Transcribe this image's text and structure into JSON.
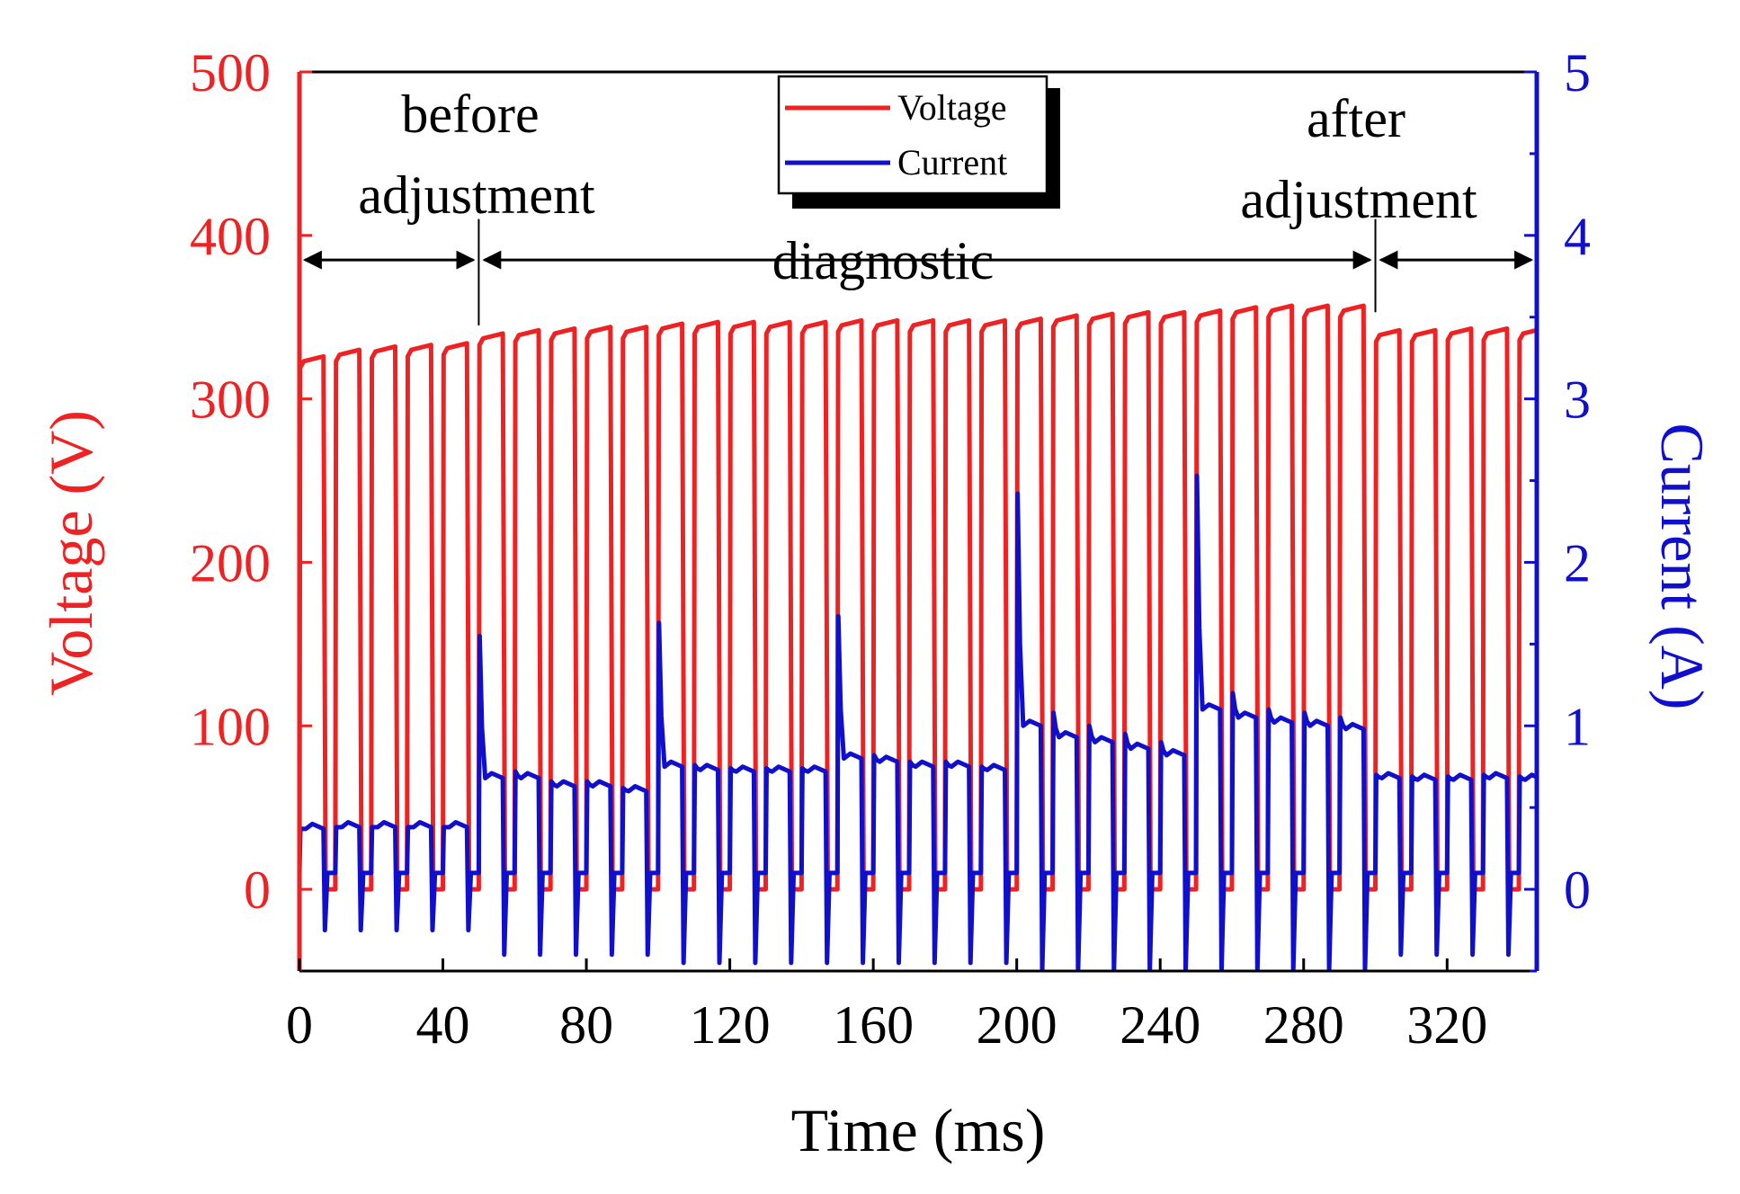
{
  "chart_data": {
    "type": "line",
    "title": "",
    "xlabel": "Time (ms)",
    "ylabel_left": "Voltage (V)",
    "ylabel_right": "Current (A)",
    "xlim": [
      0,
      345
    ],
    "ylim_left": [
      -50,
      500
    ],
    "ylim_right": [
      -0.5,
      5
    ],
    "x_ticks": [
      "0",
      "40",
      "80",
      "120",
      "160",
      "200",
      "240",
      "280",
      "320"
    ],
    "x_tick_values": [
      0,
      40,
      80,
      120,
      160,
      200,
      240,
      280,
      320
    ],
    "y_left_ticks": [
      "0",
      "100",
      "200",
      "300",
      "400",
      "500"
    ],
    "y_left_tick_values": [
      0,
      100,
      200,
      300,
      400,
      500
    ],
    "y_right_ticks": [
      "0",
      "1",
      "2",
      "3",
      "4",
      "5"
    ],
    "y_right_tick_values": [
      0,
      1,
      2,
      3,
      4,
      5
    ],
    "grid": false,
    "legend": {
      "position": "top-center",
      "entries": [
        {
          "name": "Voltage",
          "color": "#ee2222"
        },
        {
          "name": "Current",
          "color": "#1010cc"
        }
      ]
    },
    "pulse_period_ms": 10,
    "pulse_on_ms": 7,
    "series": [
      {
        "name": "Voltage",
        "axis": "left",
        "unit": "V",
        "color": "#ee2222",
        "pulse_start_ms": [
          0,
          10,
          20,
          30,
          40,
          50,
          60,
          70,
          80,
          90,
          100,
          110,
          120,
          130,
          140,
          150,
          160,
          170,
          180,
          190,
          200,
          210,
          220,
          230,
          240,
          250,
          260,
          270,
          280,
          290,
          300,
          310,
          320,
          330,
          340
        ],
        "pulse_plateau": [
          326,
          330,
          332,
          333,
          334,
          340,
          342,
          343,
          344,
          344,
          346,
          347,
          347,
          347,
          347,
          348,
          348,
          348,
          348,
          348,
          349,
          351,
          352,
          353,
          353,
          354,
          356,
          357,
          357,
          357,
          342,
          342,
          343,
          343,
          343
        ],
        "off_level": 0
      },
      {
        "name": "Current",
        "axis": "right",
        "unit": "A",
        "color": "#1010cc",
        "pulse_start_ms": [
          0,
          10,
          20,
          30,
          40,
          50,
          60,
          70,
          80,
          90,
          100,
          110,
          120,
          130,
          140,
          150,
          160,
          170,
          180,
          190,
          200,
          210,
          220,
          230,
          240,
          250,
          260,
          270,
          280,
          290,
          300,
          310,
          320,
          330,
          340
        ],
        "pulse_plateau": [
          0.37,
          0.38,
          0.38,
          0.38,
          0.38,
          0.68,
          0.68,
          0.63,
          0.63,
          0.6,
          0.75,
          0.73,
          0.72,
          0.72,
          0.72,
          0.8,
          0.78,
          0.75,
          0.75,
          0.73,
          1.0,
          0.93,
          0.9,
          0.86,
          0.82,
          1.1,
          1.05,
          1.02,
          1.0,
          0.98,
          0.68,
          0.67,
          0.67,
          0.68,
          0.67
        ],
        "pulse_peak": [
          0.37,
          0.38,
          0.38,
          0.38,
          0.38,
          1.55,
          0.72,
          0.66,
          0.66,
          0.62,
          1.63,
          0.76,
          0.74,
          0.74,
          0.74,
          1.67,
          0.82,
          0.78,
          0.78,
          0.75,
          2.42,
          1.08,
          1.0,
          0.95,
          0.9,
          2.53,
          1.2,
          1.1,
          1.08,
          1.05,
          0.7,
          0.69,
          0.69,
          0.7,
          0.69
        ],
        "off_level": 0.1,
        "off_undershoot": [
          -0.25,
          -0.25,
          -0.25,
          -0.25,
          -0.25,
          -0.4,
          -0.4,
          -0.4,
          -0.4,
          -0.4,
          -0.45,
          -0.45,
          -0.45,
          -0.45,
          -0.45,
          -0.45,
          -0.45,
          -0.45,
          -0.45,
          -0.45,
          -0.5,
          -0.5,
          -0.5,
          -0.5,
          -0.5,
          -0.5,
          -0.5,
          -0.5,
          -0.5,
          -0.5,
          -0.4,
          -0.4,
          -0.4,
          -0.4,
          -0.4
        ]
      }
    ],
    "annotations": {
      "before_line1": "before",
      "before_line2": "adjustment",
      "diagnostic": "diagnostic",
      "after_line1": "after",
      "after_line2": "adjustment",
      "arrow_y_value": 385,
      "boundaries_ms": [
        50,
        300
      ]
    }
  }
}
